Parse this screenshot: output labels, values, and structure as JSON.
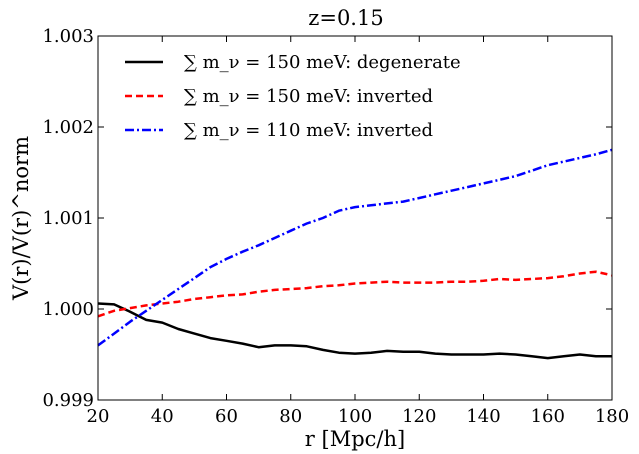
{
  "chart_data": {
    "type": "line",
    "title": "z=0.15",
    "xlabel": "r [Mpc/h]",
    "ylabel": "V(r)/V(r)^norm",
    "xlim": [
      20,
      180
    ],
    "ylim": [
      0.999,
      1.003
    ],
    "xticks": [
      20,
      40,
      60,
      80,
      100,
      120,
      140,
      160,
      180
    ],
    "yticks": [
      0.999,
      1.0,
      1.001,
      1.002,
      1.003
    ],
    "ytick_labels": [
      "0.999",
      "1.000",
      "1.001",
      "1.002",
      "1.003"
    ],
    "grid": false,
    "legend_position": "upper-left",
    "series": [
      {
        "name": "∑ m_ν = 150 meV: degenerate",
        "color": "#000000",
        "style": "solid",
        "x": [
          20,
          25,
          30,
          35,
          40,
          45,
          50,
          55,
          60,
          65,
          70,
          75,
          80,
          85,
          90,
          95,
          100,
          105,
          110,
          115,
          120,
          125,
          130,
          135,
          140,
          145,
          150,
          155,
          160,
          165,
          170,
          175,
          180
        ],
        "y": [
          1.00006,
          1.00005,
          0.99997,
          0.99988,
          0.99985,
          0.99978,
          0.99973,
          0.99968,
          0.99965,
          0.99962,
          0.99958,
          0.9996,
          0.9996,
          0.99959,
          0.99955,
          0.99952,
          0.99951,
          0.99952,
          0.99954,
          0.99953,
          0.99953,
          0.99951,
          0.9995,
          0.9995,
          0.9995,
          0.99951,
          0.9995,
          0.99948,
          0.99946,
          0.99948,
          0.9995,
          0.99948,
          0.99948
        ]
      },
      {
        "name": "∑ m_ν = 150 meV: inverted",
        "color": "#ff0000",
        "style": "dashed",
        "x": [
          20,
          25,
          30,
          35,
          40,
          45,
          50,
          55,
          60,
          65,
          70,
          75,
          80,
          85,
          90,
          95,
          100,
          105,
          110,
          115,
          120,
          125,
          130,
          135,
          140,
          145,
          150,
          155,
          160,
          165,
          170,
          175,
          180
        ],
        "y": [
          0.99992,
          0.99998,
          1.00001,
          1.00004,
          1.00006,
          1.00008,
          1.00011,
          1.00013,
          1.00015,
          1.00016,
          1.00019,
          1.00021,
          1.00022,
          1.00023,
          1.00025,
          1.00026,
          1.00028,
          1.00029,
          1.0003,
          1.00029,
          1.00029,
          1.00029,
          1.0003,
          1.0003,
          1.00031,
          1.00033,
          1.00032,
          1.00033,
          1.00034,
          1.00036,
          1.00039,
          1.00041,
          1.00037
        ]
      },
      {
        "name": "∑ m_ν = 110 meV: inverted",
        "color": "#0000ff",
        "style": "dashdot",
        "x": [
          20,
          25,
          30,
          35,
          40,
          45,
          50,
          55,
          60,
          65,
          70,
          75,
          80,
          85,
          90,
          95,
          100,
          105,
          110,
          115,
          120,
          125,
          130,
          135,
          140,
          145,
          150,
          155,
          160,
          165,
          170,
          175,
          180
        ],
        "y": [
          0.9996,
          0.99973,
          0.99986,
          0.99998,
          1.0001,
          1.00022,
          1.00034,
          1.00046,
          1.00055,
          1.00063,
          1.0007,
          1.00078,
          1.00086,
          1.00094,
          1.001,
          1.00108,
          1.00112,
          1.00114,
          1.00116,
          1.00118,
          1.00122,
          1.00126,
          1.0013,
          1.00134,
          1.00138,
          1.00142,
          1.00146,
          1.00152,
          1.00158,
          1.00162,
          1.00166,
          1.0017,
          1.00175
        ]
      }
    ]
  }
}
